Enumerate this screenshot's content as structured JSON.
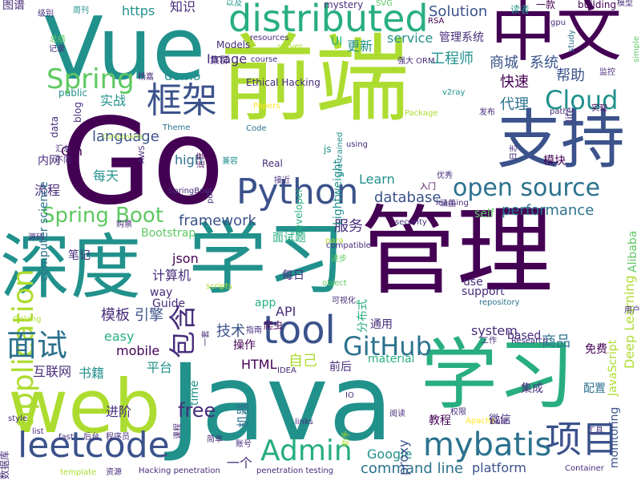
{
  "palette": {
    "background": "#ffffff",
    "dark_purple": "#440154",
    "indigo": "#472d7b",
    "blue": "#3b528b",
    "steel": "#2c728e",
    "teal": "#21918c",
    "green": "#28ae80",
    "lime": "#5ec962",
    "yellow_green": "#addc30",
    "yellow": "#fde725"
  },
  "words": [
    {
      "text": "Java",
      "color": "teal"
    },
    {
      "text": "管理",
      "color": "dark_purple"
    },
    {
      "text": "前端",
      "color": "yellow_green"
    },
    {
      "text": "Go",
      "color": "dark_purple"
    },
    {
      "text": "学习",
      "color": "teal"
    },
    {
      "text": "学习",
      "color": "green"
    },
    {
      "text": "深度",
      "color": "teal"
    },
    {
      "text": "Vue",
      "color": "teal"
    },
    {
      "text": "web",
      "color": "yellow_green"
    },
    {
      "text": "中文",
      "color": "dark_purple"
    },
    {
      "text": "支持",
      "color": "blue"
    },
    {
      "text": "distributed",
      "color": "green"
    },
    {
      "text": "application",
      "color": "yellow_green"
    },
    {
      "text": "Python",
      "color": "blue"
    },
    {
      "text": "leetcode",
      "color": "blue"
    },
    {
      "text": "框架",
      "color": "blue"
    },
    {
      "text": "Spring",
      "color": "lime"
    },
    {
      "text": "项目",
      "color": "blue"
    },
    {
      "text": "tool",
      "color": "blue"
    },
    {
      "text": "mybatis",
      "color": "steel"
    },
    {
      "text": "open source",
      "color": "steel"
    },
    {
      "text": "Admin",
      "color": "green"
    },
    {
      "text": "GitHub",
      "color": "steel"
    },
    {
      "text": "Cloud",
      "color": "teal"
    },
    {
      "text": "面试",
      "color": "steel"
    },
    {
      "text": "包含",
      "color": "indigo"
    },
    {
      "text": "Spring Boot",
      "color": "lime"
    },
    {
      "text": "free",
      "color": "indigo"
    },
    {
      "text": "language",
      "color": "blue"
    },
    {
      "text": "database",
      "color": "blue"
    },
    {
      "text": "performance",
      "color": "steel"
    },
    {
      "text": "Solution",
      "color": "blue"
    },
    {
      "text": "command line",
      "color": "steel"
    },
    {
      "text": "framework",
      "color": "blue"
    },
    {
      "text": "商城",
      "color": "blue"
    },
    {
      "text": "系统",
      "color": "blue"
    },
    {
      "text": "快速",
      "color": "dark_purple"
    },
    {
      "text": "代理",
      "color": "steel"
    },
    {
      "text": "帮助",
      "color": "blue"
    },
    {
      "text": "服务",
      "color": "indigo"
    },
    {
      "text": "https",
      "color": "teal"
    },
    {
      "text": "知识",
      "color": "indigo"
    },
    {
      "text": "Image",
      "color": "indigo"
    },
    {
      "text": "service",
      "color": "teal"
    },
    {
      "text": "管理系统",
      "color": "indigo"
    },
    {
      "text": "更新",
      "color": "teal"
    },
    {
      "text": "工程师",
      "color": "teal"
    },
    {
      "text": "demo",
      "color": "teal"
    },
    {
      "text": "实战",
      "color": "teal"
    },
    {
      "text": "high",
      "color": "steel"
    },
    {
      "text": "每天",
      "color": "teal"
    },
    {
      "text": "Gin",
      "color": "dark_purple"
    },
    {
      "text": "流程",
      "color": "indigo"
    },
    {
      "text": "笔记",
      "color": "indigo"
    },
    {
      "text": "Learn",
      "color": "teal"
    },
    {
      "text": "Google",
      "color": "teal"
    },
    {
      "text": "self",
      "color": "lime"
    },
    {
      "text": "Bootstrap",
      "color": "lime"
    },
    {
      "text": "面试题",
      "color": "green"
    },
    {
      "text": "json",
      "color": "dark_purple"
    },
    {
      "text": "计算机",
      "color": "indigo"
    },
    {
      "text": "每日",
      "color": "indigo"
    },
    {
      "text": "模板",
      "color": "indigo"
    },
    {
      "text": "引擎",
      "color": "blue"
    },
    {
      "text": "mobile",
      "color": "dark_purple"
    },
    {
      "text": "技术",
      "color": "blue"
    },
    {
      "text": "easy",
      "color": "green"
    },
    {
      "text": "平台",
      "color": "teal"
    },
    {
      "text": "API",
      "color": "indigo"
    },
    {
      "text": "app",
      "color": "green"
    },
    {
      "text": "use",
      "color": "indigo"
    },
    {
      "text": "support",
      "color": "indigo"
    },
    {
      "text": "system",
      "color": "indigo"
    },
    {
      "text": "based",
      "color": "indigo"
    },
    {
      "text": "商品",
      "color": "steel"
    },
    {
      "text": "免费",
      "color": "dark_purple"
    },
    {
      "text": "通用",
      "color": "indigo"
    },
    {
      "text": "操作",
      "color": "dark_purple"
    },
    {
      "text": "HTML",
      "color": "dark_purple"
    },
    {
      "text": "自己",
      "color": "yellow_green"
    },
    {
      "text": "前后",
      "color": "indigo"
    },
    {
      "text": "material",
      "color": "green"
    },
    {
      "text": "集成",
      "color": "indigo"
    },
    {
      "text": "配置",
      "color": "steel"
    },
    {
      "text": "教程",
      "color": "dark_purple"
    },
    {
      "text": "微信",
      "color": "indigo"
    },
    {
      "text": "platform",
      "color": "blue"
    },
    {
      "text": "进阶",
      "color": "indigo"
    },
    {
      "text": "一个",
      "color": "indigo"
    },
    {
      "text": "proxy",
      "color": "blue"
    },
    {
      "text": "monitoring",
      "color": "blue"
    },
    {
      "text": "Deep Learning",
      "color": "yellow_green"
    },
    {
      "text": "Alibaba",
      "color": "lime"
    },
    {
      "text": "JavaScript",
      "color": "yellow_green"
    },
    {
      "text": "分布式",
      "color": "green"
    },
    {
      "text": "机器",
      "color": "steel"
    },
    {
      "text": "互联网",
      "color": "indigo"
    },
    {
      "text": "书籍",
      "color": "teal"
    },
    {
      "text": "time",
      "color": "teal"
    },
    {
      "text": "爬虫",
      "color": "dark_purple"
    },
    {
      "text": "Guide",
      "color": "indigo"
    },
    {
      "text": "way",
      "color": "indigo"
    },
    {
      "text": "computer science",
      "color": "steel"
    },
    {
      "text": "Ethical Hacking",
      "color": "indigo"
    },
    {
      "text": "Lightweight",
      "color": "teal"
    },
    {
      "text": "Models",
      "color": "indigo"
    },
    {
      "text": "集群",
      "color": "indigo"
    },
    {
      "text": "UI",
      "color": "green"
    },
    {
      "text": "resources",
      "color": "indigo"
    },
    {
      "text": "Real",
      "color": "indigo"
    },
    {
      "text": "developer",
      "color": "green"
    },
    {
      "text": "js",
      "color": "teal"
    },
    {
      "text": "pre trained",
      "color": "teal"
    },
    {
      "text": "Code",
      "color": "steel"
    },
    {
      "text": "Papers",
      "color": "yellow"
    },
    {
      "text": "Package",
      "color": "yellow_green"
    },
    {
      "text": "Theme",
      "color": "steel"
    },
    {
      "text": "内网",
      "color": "indigo"
    },
    {
      "text": "data",
      "color": "indigo"
    },
    {
      "text": "public",
      "color": "teal"
    },
    {
      "text": "blog",
      "color": "indigo"
    },
    {
      "text": "周刊",
      "color": "teal"
    },
    {
      "text": "图谱",
      "color": "indigo"
    },
    {
      "text": "级别",
      "color": "indigo"
    },
    {
      "text": "总结",
      "color": "lime"
    },
    {
      "text": "记录",
      "color": "indigo"
    },
    {
      "text": "以及",
      "color": "teal"
    },
    {
      "text": "mystery",
      "color": "indigo"
    },
    {
      "text": "SVG",
      "color": "lime"
    },
    {
      "text": "读者",
      "color": "teal"
    },
    {
      "text": "一款",
      "color": "dark_purple"
    },
    {
      "text": "building",
      "color": "dark_purple"
    },
    {
      "text": "模型",
      "color": "indigo"
    },
    {
      "text": "gpu",
      "color": "indigo"
    },
    {
      "text": "study",
      "color": "steel"
    },
    {
      "text": "simple",
      "color": "lime"
    },
    {
      "text": "RSA",
      "color": "dark_purple"
    },
    {
      "text": "强大 ORM",
      "color": "indigo"
    },
    {
      "text": "server",
      "color": "yellow_green"
    },
    {
      "text": "course",
      "color": "indigo"
    },
    {
      "text": "v2ray",
      "color": "teal"
    },
    {
      "text": "life",
      "color": "indigo"
    },
    {
      "text": "实现",
      "color": "dark_purple"
    },
    {
      "text": "监控",
      "color": "indigo"
    },
    {
      "text": "发布",
      "color": "indigo"
    },
    {
      "text": "path",
      "color": "indigo"
    },
    {
      "text": "using",
      "color": "indigo"
    },
    {
      "text": "日志",
      "color": "indigo"
    },
    {
      "text": "模块",
      "color": "dark_purple"
    },
    {
      "text": "优秀",
      "color": "indigo"
    },
    {
      "text": "入门",
      "color": "dark_purple"
    },
    {
      "text": "learning",
      "color": "indigo"
    },
    {
      "text": "涵盖",
      "color": "indigo"
    },
    {
      "text": "security",
      "color": "indigo"
    },
    {
      "text": "运营",
      "color": "dark_purple"
    },
    {
      "text": "AWS",
      "color": "indigo"
    },
    {
      "text": "Components",
      "color": "yellow_green"
    },
    {
      "text": "汇总",
      "color": "indigo"
    },
    {
      "text": "不同",
      "color": "indigo"
    },
    {
      "text": "杨嘉",
      "color": "indigo"
    },
    {
      "text": "兼容",
      "color": "teal"
    },
    {
      "text": "接近",
      "color": "indigo"
    },
    {
      "text": "源码",
      "color": "indigo"
    },
    {
      "text": "购票",
      "color": "indigo"
    },
    {
      "text": "SpringBoot",
      "color": "indigo"
    },
    {
      "text": "pdf",
      "color": "indigo"
    },
    {
      "text": "进步",
      "color": "lime"
    },
    {
      "text": "para",
      "color": "yellow_green"
    },
    {
      "text": "compatible",
      "color": "indigo"
    },
    {
      "text": "object",
      "color": "lime"
    },
    {
      "text": "可视化",
      "color": "indigo"
    },
    {
      "text": "scripts",
      "color": "yellow_green"
    },
    {
      "text": "repository",
      "color": "steel"
    },
    {
      "text": "用户",
      "color": "indigo"
    },
    {
      "text": "指南",
      "color": "indigo"
    },
    {
      "text": "工作",
      "color": "indigo"
    },
    {
      "text": "Research",
      "color": "indigo"
    },
    {
      "text": "一套",
      "color": "indigo"
    },
    {
      "text": "Golang",
      "color": "yellow_green"
    },
    {
      "text": "工具",
      "color": "indigo"
    },
    {
      "text": "IDEA",
      "color": "indigo"
    },
    {
      "text": "IO",
      "color": "indigo"
    },
    {
      "text": "阅读",
      "color": "indigo"
    },
    {
      "text": "权限",
      "color": "indigo"
    },
    {
      "text": "Apache",
      "color": "yellow"
    },
    {
      "text": "built",
      "color": "indigo"
    },
    {
      "text": "links",
      "color": "indigo"
    },
    {
      "text": "课程",
      "color": "indigo"
    },
    {
      "text": "简单",
      "color": "indigo"
    },
    {
      "text": "账号",
      "color": "indigo"
    },
    {
      "text": "助手",
      "color": "yellow_green"
    },
    {
      "text": "style",
      "color": "indigo"
    },
    {
      "text": "list",
      "color": "indigo"
    },
    {
      "text": "fast",
      "color": "indigo"
    },
    {
      "text": "后台",
      "color": "indigo"
    },
    {
      "text": "程序员",
      "color": "indigo"
    },
    {
      "text": "数据库",
      "color": "indigo"
    },
    {
      "text": "template",
      "color": "yellow_green"
    },
    {
      "text": "资源",
      "color": "indigo"
    },
    {
      "text": "Hacking penetration",
      "color": "indigo"
    },
    {
      "text": "penetration testing",
      "color": "indigo"
    },
    {
      "text": "Container",
      "color": "indigo"
    }
  ]
}
